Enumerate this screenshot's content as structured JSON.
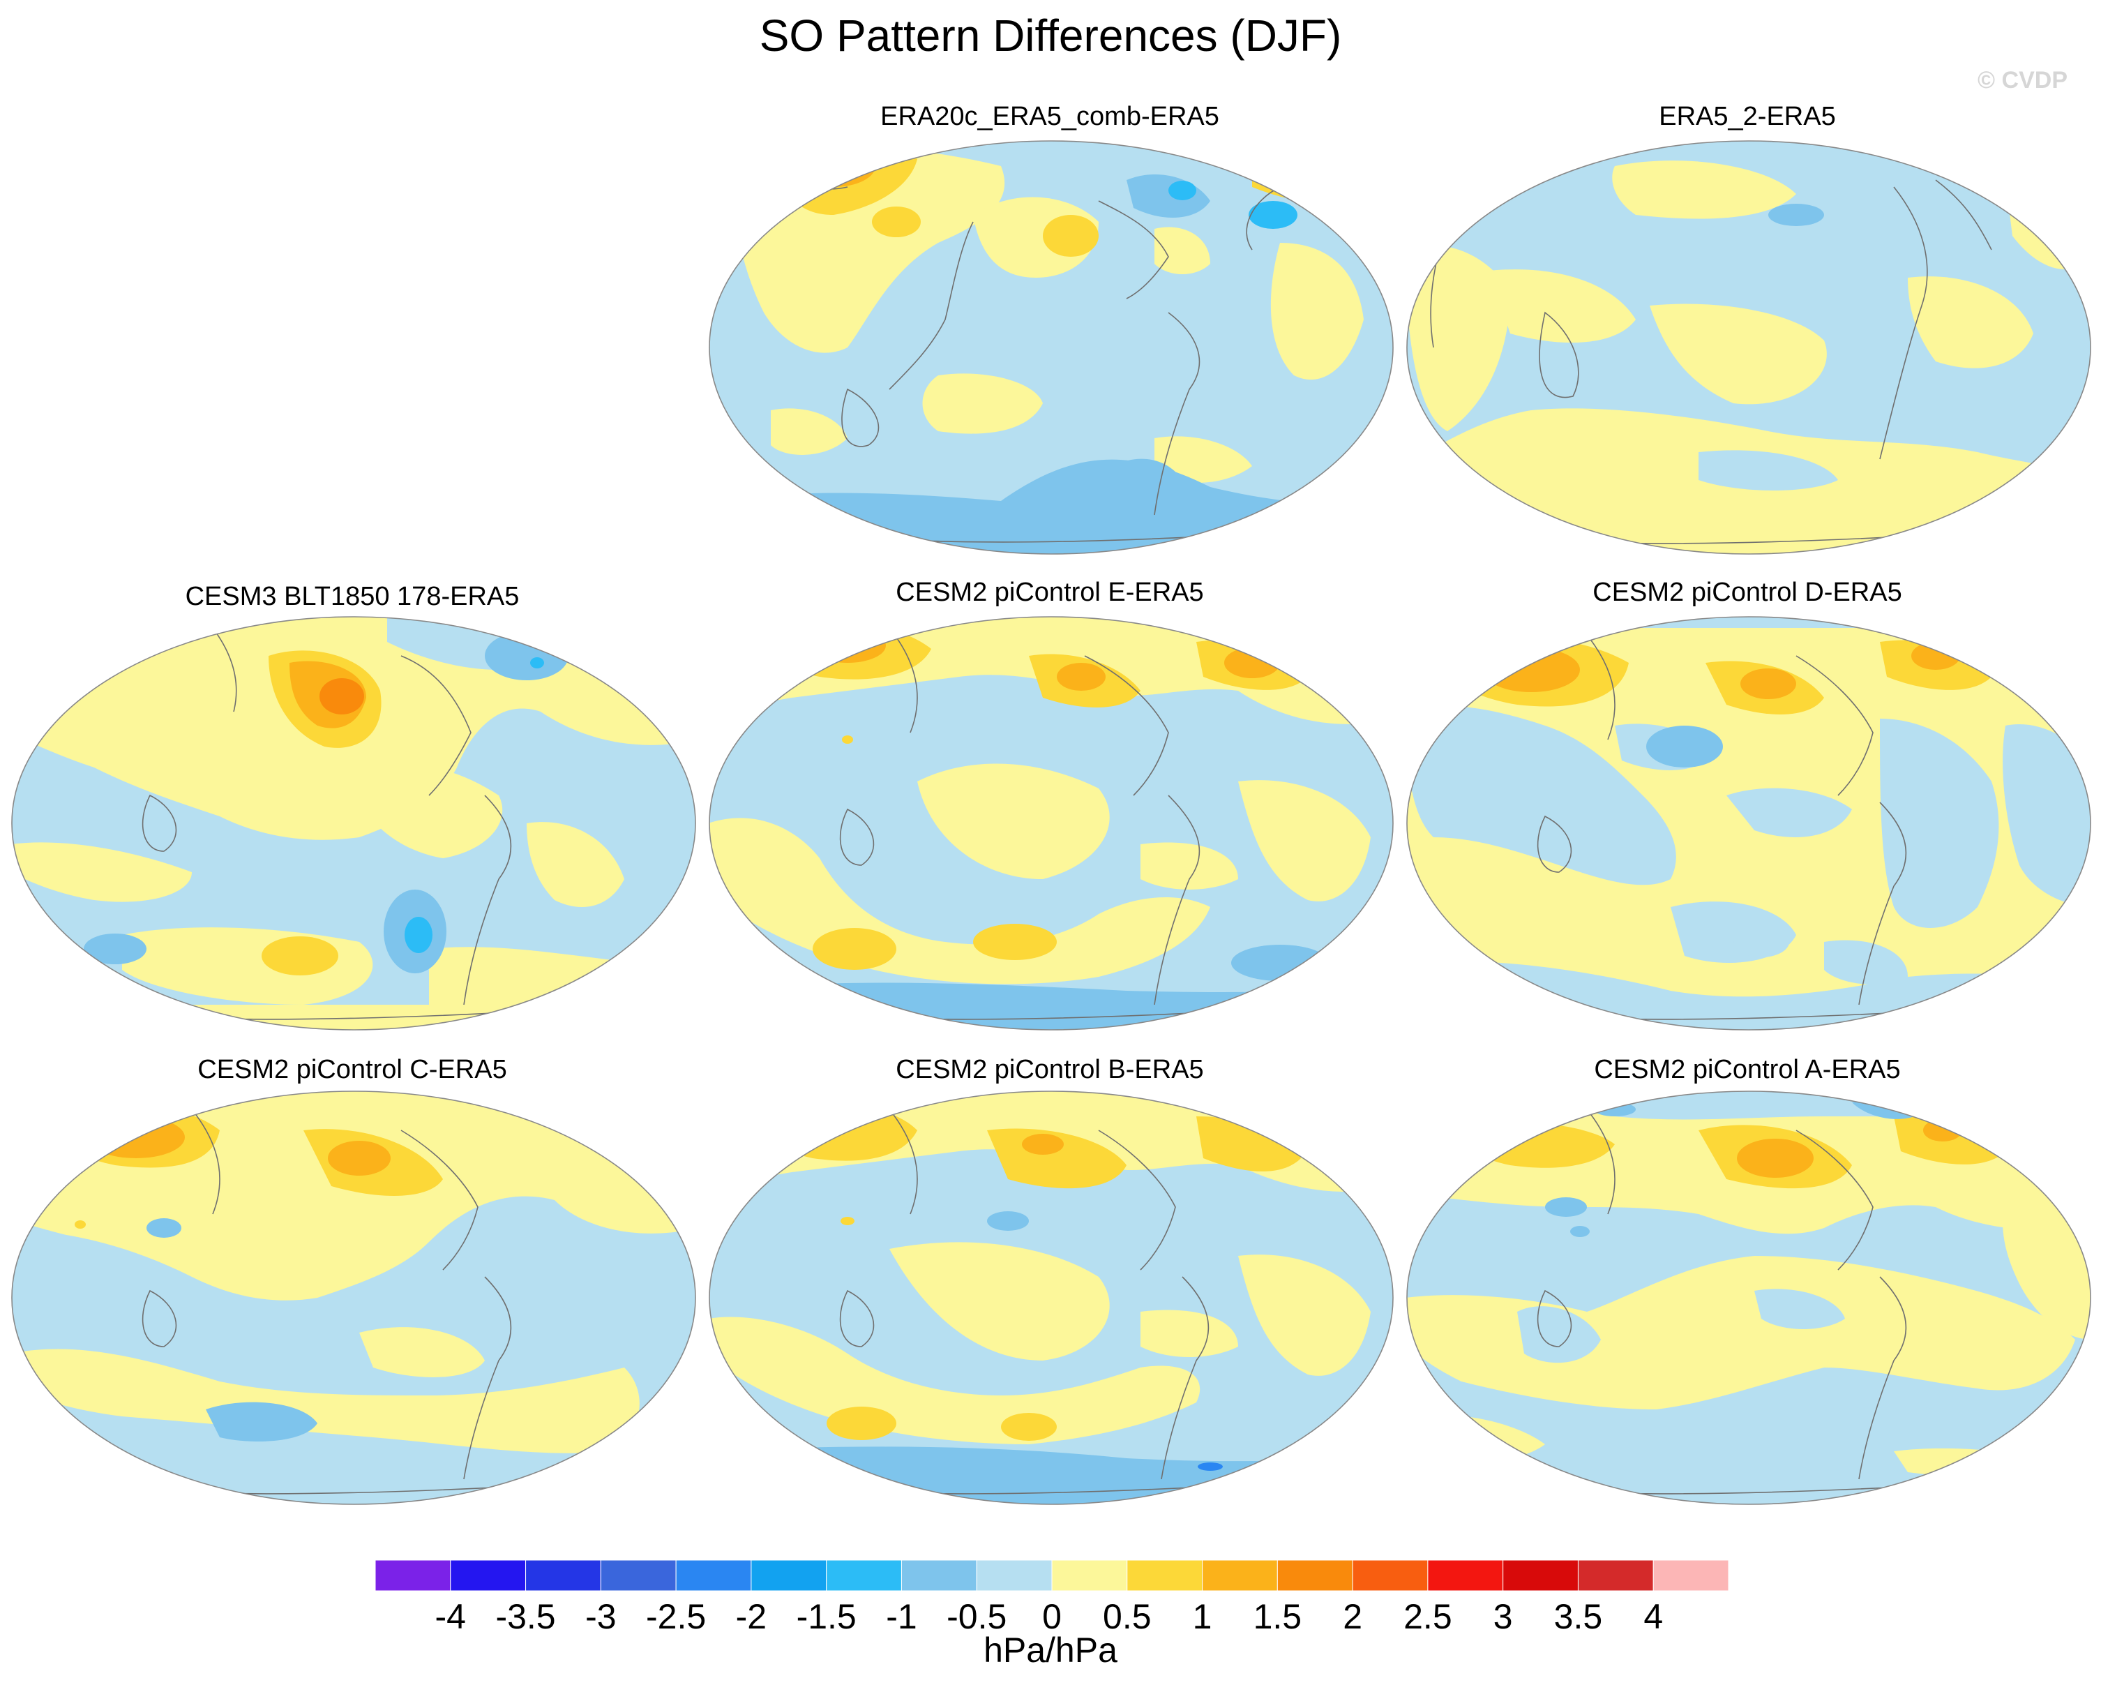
{
  "title": "SO Pattern Differences (DJF)",
  "watermark": "© CVDP",
  "panels": [
    {
      "label": "ERA20c_ERA5_comb-ERA5",
      "pos": "row1-col2"
    },
    {
      "label": "ERA5_2-ERA5",
      "pos": "row1-col3"
    },
    {
      "label": "CESM3 BLT1850 178-ERA5",
      "pos": "row2-col1"
    },
    {
      "label": "CESM2 piControl E-ERA5",
      "pos": "row2-col2"
    },
    {
      "label": "CESM2 piControl D-ERA5",
      "pos": "row2-col3"
    },
    {
      "label": "CESM2 piControl C-ERA5",
      "pos": "row3-col1"
    },
    {
      "label": "CESM2 piControl B-ERA5",
      "pos": "row3-col2"
    },
    {
      "label": "CESM2 piControl A-ERA5",
      "pos": "row3-col3"
    }
  ],
  "colorbar": {
    "levels": [
      "-4",
      "-3.5",
      "-3",
      "-2.5",
      "-2",
      "-1.5",
      "-1",
      "-0.5",
      "0",
      "0.5",
      "1",
      "1.5",
      "2",
      "2.5",
      "3",
      "3.5",
      "4"
    ],
    "colors": [
      "#7b22e8",
      "#2416f0",
      "#2436e6",
      "#3a66dc",
      "#2a86f2",
      "#12a2f0",
      "#2cbcf6",
      "#7ec4ec",
      "#b6dff1",
      "#fcf79a",
      "#fcd838",
      "#fbb21a",
      "#f98a0c",
      "#f85e10",
      "#f31610",
      "#d80a0a",
      "#d42a2a",
      "#fcb6b6"
    ],
    "units": "hPa/hPa"
  },
  "palette": {
    "ocean_light_blue": "#b6dff1",
    "mid_blue": "#7ec4ec",
    "pale_yellow": "#fcf79a",
    "yellow": "#fcd838",
    "orange": "#fbb21a",
    "coast": "#6f6f6f"
  }
}
